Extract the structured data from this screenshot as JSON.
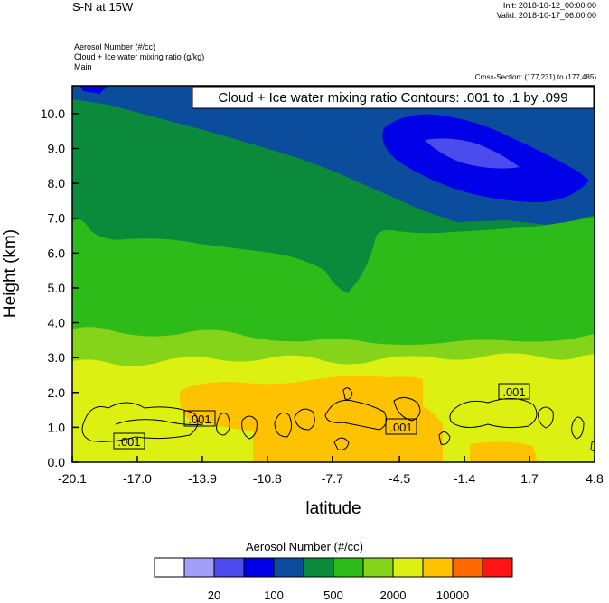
{
  "header": {
    "title": "S-N at 15W",
    "init": "Init: 2018-10-12_00:00:00",
    "valid": "Valid: 2018-10-17_06:00:00",
    "fields": [
      "Aerosol Number   (#/cc)",
      "Cloud + Ice water mixing ratio   (g/kg)",
      "Main"
    ],
    "cross_section": "Cross-Section: (177,231) to (177,485)"
  },
  "chart_data": {
    "type": "heatmap",
    "title": "S-N at 15W",
    "xlabel": "latitude",
    "ylabel": "Height (km)",
    "xlim": [
      -20.1,
      4.8
    ],
    "ylim": [
      0.0,
      10.8
    ],
    "x_ticks": [
      "-20.1",
      "-17.0",
      "-13.9",
      "-10.8",
      "-7.7",
      "-4.5",
      "-1.4",
      "1.7",
      "4.8"
    ],
    "y_ticks": [
      "0.0",
      "1.0",
      "2.0",
      "3.0",
      "4.0",
      "5.0",
      "6.0",
      "7.0",
      "8.0",
      "9.0",
      "10.0"
    ],
    "contour_label": "Cloud + Ice water mixing ratio Contours: .001 to .1 by .099",
    "contour_value_labels": [
      ".001",
      ".001",
      ".001",
      ".001"
    ],
    "colorbar": {
      "title": "Aerosol Number  (#/cc)",
      "colors": [
        "#ffffff",
        "#a0a0f8",
        "#4b4bee",
        "#0000e8",
        "#0b4d9c",
        "#0c8a3c",
        "#2dbb19",
        "#86d41a",
        "#dcf011",
        "#ffc200",
        "#ff6a00",
        "#ff1414"
      ],
      "labels": [
        "20",
        "100",
        "500",
        "2000",
        "10000"
      ]
    },
    "grid": false
  }
}
